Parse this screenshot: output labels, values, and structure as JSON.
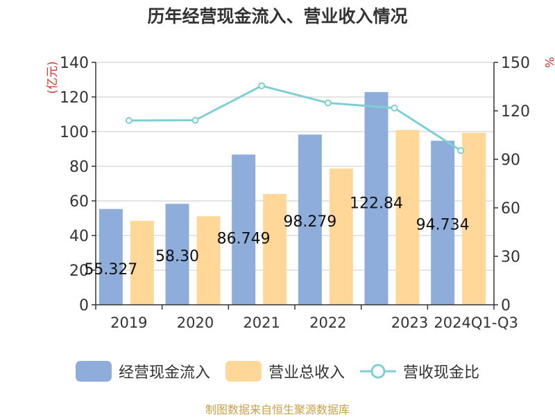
{
  "chart_data": {
    "type": "bar",
    "title": "历年经营现金流入、营业收入情况",
    "categories": [
      "2019",
      "2020",
      "2021",
      "2022",
      "2023",
      "2024Q1-Q3"
    ],
    "series": [
      {
        "name": "经营现金流入",
        "type": "bar",
        "axis": "left",
        "color": "#8eadda",
        "values": [
          55.327,
          58.3,
          86.749,
          98.279,
          122.84,
          94.734
        ],
        "labels": [
          "55.327",
          "58.30",
          "86.749",
          "98.279",
          "122.84",
          "94.734"
        ]
      },
      {
        "name": "营业总收入",
        "type": "bar",
        "axis": "left",
        "color": "#ffd899",
        "values": [
          48.5,
          51.1,
          64.0,
          78.7,
          100.9,
          99.3
        ]
      },
      {
        "name": "营收现金比",
        "type": "line",
        "axis": "right",
        "color": "#7dcfd4",
        "values": [
          114.0,
          114.2,
          135.5,
          124.9,
          121.7,
          95.4
        ]
      }
    ],
    "y_left": {
      "label": "(亿元)",
      "min": 0,
      "max": 140,
      "ticks": [
        "0",
        "20",
        "40",
        "60",
        "80",
        "100",
        "120",
        "140"
      ]
    },
    "y_right": {
      "label": "%",
      "min": 0,
      "max": 150,
      "ticks": [
        "0",
        "30",
        "60",
        "90",
        "120",
        "150"
      ]
    },
    "grid": true,
    "legend_position": "bottom"
  },
  "source_note": "制图数据来自恒生聚源数据库"
}
